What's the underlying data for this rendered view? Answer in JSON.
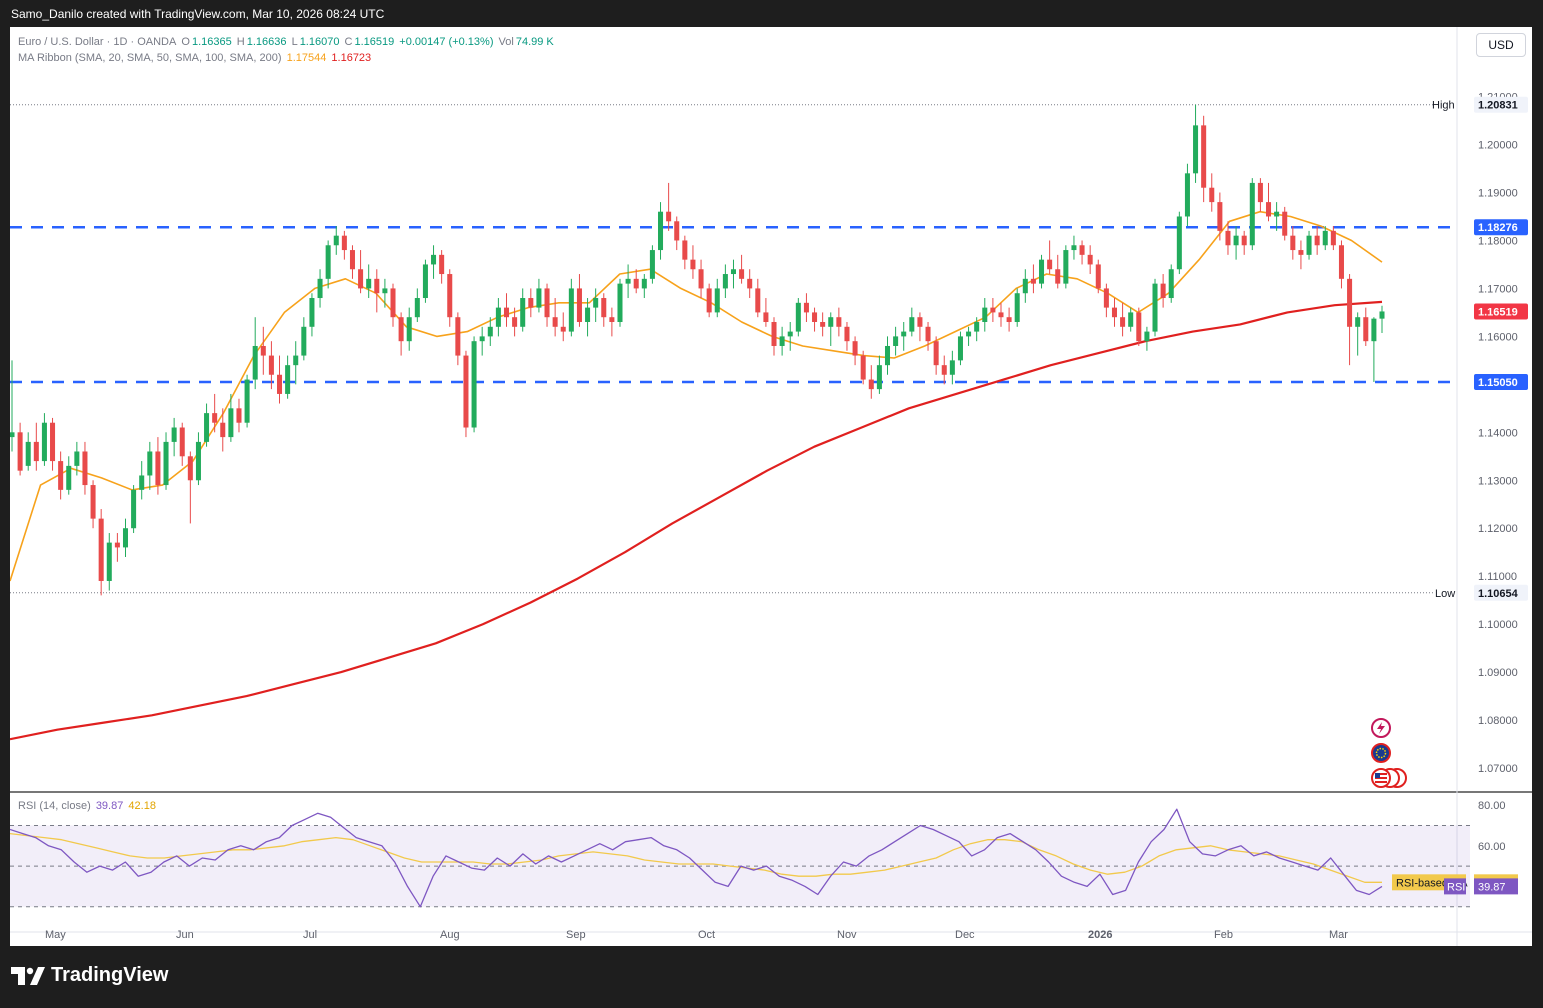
{
  "header": {
    "attribution": "Samo_Danilo created with TradingView.com, Mar 10, 2026 08:24 UTC"
  },
  "legend": {
    "symbol": "Euro / U.S. Dollar · 1D · OANDA",
    "open_label": "O",
    "open": "1.16365",
    "high_label": "H",
    "high": "1.16636",
    "low_label": "L",
    "low": "1.16070",
    "close_label": "C",
    "close": "1.16519",
    "change": "+0.00147 (+0.13%)",
    "vol_label": "Vol",
    "vol": "74.99 K",
    "ma_title": "MA Ribbon (SMA, 20, SMA, 50, SMA, 100, SMA, 200)",
    "ma_value_1": "1.17544",
    "ma_value_2": "1.16723",
    "rsi_title": "RSI (14, close)",
    "rsi_value": "39.87",
    "rsi_ma_value": "42.18"
  },
  "currency_button": "USD",
  "price_axis": {
    "ticks": [
      "1.21000",
      "1.20000",
      "1.19000",
      "1.18000",
      "1.17000",
      "1.16000",
      "1.15000",
      "1.14000",
      "1.13000",
      "1.12000",
      "1.11000",
      "1.10000",
      "1.09000",
      "1.08000",
      "1.07000"
    ],
    "high_label": "High",
    "high_value": "1.20831",
    "low_label": "Low",
    "low_value": "1.10654",
    "resistance_label": "1.18276",
    "current_label": "1.16519",
    "support_label": "1.15050"
  },
  "rsi_axis": {
    "ticks": [
      "80.00",
      "60.00"
    ],
    "ma_label": "RSI-based MA",
    "ma_value": "42.18",
    "rsi_label": "RSI",
    "rsi_value": "39.87"
  },
  "time_axis": [
    "May",
    "Jun",
    "Jul",
    "Aug",
    "Sep",
    "Oct",
    "Nov",
    "Dec",
    "2026",
    "Feb",
    "Mar"
  ],
  "colors": {
    "up": "#22ab5c",
    "down": "#e84a4a",
    "ma_fast": "#f7a21b",
    "ma_slow": "#e0201f",
    "level_line": "#2962ff",
    "rsi": "#7e57c2",
    "rsi_ma": "#f2c94c"
  },
  "icons": [
    "lightning-event-icon",
    "eu-flag-icon",
    "us-flag-icon"
  ],
  "footer": {
    "brand": "TradingView"
  },
  "chart_data": {
    "type": "candlestick",
    "instrument": "EUR/USD",
    "timeframe": "1D",
    "ylim": [
      1.065,
      1.212
    ],
    "levels": {
      "high": 1.20831,
      "low": 1.10654,
      "resistance": 1.18276,
      "support": 1.1505,
      "last": 1.16519
    },
    "ohlc": [
      [
        1.139,
        1.155,
        1.136,
        1.14
      ],
      [
        1.14,
        1.142,
        1.131,
        1.132
      ],
      [
        1.133,
        1.14,
        1.132,
        1.138
      ],
      [
        1.138,
        1.142,
        1.132,
        1.134
      ],
      [
        1.134,
        1.144,
        1.133,
        1.142
      ],
      [
        1.142,
        1.143,
        1.132,
        1.134
      ],
      [
        1.134,
        1.136,
        1.126,
        1.128
      ],
      [
        1.128,
        1.135,
        1.127,
        1.133
      ],
      [
        1.133,
        1.138,
        1.131,
        1.136
      ],
      [
        1.136,
        1.138,
        1.127,
        1.129
      ],
      [
        1.129,
        1.13,
        1.12,
        1.122
      ],
      [
        1.122,
        1.124,
        1.106,
        1.109
      ],
      [
        1.109,
        1.119,
        1.107,
        1.117
      ],
      [
        1.117,
        1.119,
        1.113,
        1.116
      ],
      [
        1.116,
        1.122,
        1.114,
        1.12
      ],
      [
        1.12,
        1.129,
        1.119,
        1.128
      ],
      [
        1.128,
        1.134,
        1.126,
        1.131
      ],
      [
        1.131,
        1.138,
        1.128,
        1.136
      ],
      [
        1.136,
        1.139,
        1.127,
        1.129
      ],
      [
        1.129,
        1.14,
        1.128,
        1.138
      ],
      [
        1.138,
        1.143,
        1.135,
        1.141
      ],
      [
        1.141,
        1.142,
        1.133,
        1.135
      ],
      [
        1.135,
        1.136,
        1.121,
        1.13
      ],
      [
        1.13,
        1.14,
        1.129,
        1.138
      ],
      [
        1.138,
        1.146,
        1.137,
        1.144
      ],
      [
        1.144,
        1.148,
        1.14,
        1.142
      ],
      [
        1.142,
        1.145,
        1.136,
        1.139
      ],
      [
        1.139,
        1.148,
        1.138,
        1.145
      ],
      [
        1.145,
        1.147,
        1.14,
        1.142
      ],
      [
        1.142,
        1.152,
        1.141,
        1.151
      ],
      [
        1.151,
        1.164,
        1.149,
        1.158
      ],
      [
        1.158,
        1.162,
        1.152,
        1.156
      ],
      [
        1.156,
        1.159,
        1.149,
        1.152
      ],
      [
        1.152,
        1.156,
        1.146,
        1.148
      ],
      [
        1.148,
        1.156,
        1.147,
        1.154
      ],
      [
        1.154,
        1.159,
        1.15,
        1.156
      ],
      [
        1.156,
        1.164,
        1.155,
        1.162
      ],
      [
        1.162,
        1.169,
        1.16,
        1.168
      ],
      [
        1.168,
        1.174,
        1.166,
        1.172
      ],
      [
        1.172,
        1.18,
        1.17,
        1.179
      ],
      [
        1.179,
        1.183,
        1.177,
        1.181
      ],
      [
        1.181,
        1.182,
        1.176,
        1.178
      ],
      [
        1.178,
        1.179,
        1.172,
        1.174
      ],
      [
        1.174,
        1.178,
        1.169,
        1.17
      ],
      [
        1.17,
        1.175,
        1.168,
        1.172
      ],
      [
        1.172,
        1.174,
        1.165,
        1.169
      ],
      [
        1.169,
        1.172,
        1.166,
        1.17
      ],
      [
        1.17,
        1.171,
        1.162,
        1.164
      ],
      [
        1.164,
        1.165,
        1.156,
        1.159
      ],
      [
        1.159,
        1.166,
        1.157,
        1.164
      ],
      [
        1.164,
        1.17,
        1.163,
        1.168
      ],
      [
        1.168,
        1.176,
        1.167,
        1.175
      ],
      [
        1.175,
        1.179,
        1.172,
        1.177
      ],
      [
        1.177,
        1.178,
        1.171,
        1.173
      ],
      [
        1.173,
        1.174,
        1.162,
        1.164
      ],
      [
        1.164,
        1.165,
        1.154,
        1.156
      ],
      [
        1.156,
        1.157,
        1.139,
        1.141
      ],
      [
        1.141,
        1.16,
        1.14,
        1.159
      ],
      [
        1.159,
        1.162,
        1.156,
        1.16
      ],
      [
        1.16,
        1.164,
        1.158,
        1.162
      ],
      [
        1.162,
        1.168,
        1.16,
        1.166
      ],
      [
        1.166,
        1.169,
        1.162,
        1.164
      ],
      [
        1.164,
        1.166,
        1.16,
        1.162
      ],
      [
        1.162,
        1.17,
        1.161,
        1.168
      ],
      [
        1.168,
        1.17,
        1.164,
        1.166
      ],
      [
        1.166,
        1.172,
        1.165,
        1.17
      ],
      [
        1.17,
        1.171,
        1.162,
        1.164
      ],
      [
        1.164,
        1.168,
        1.16,
        1.162
      ],
      [
        1.162,
        1.165,
        1.159,
        1.161
      ],
      [
        1.161,
        1.172,
        1.16,
        1.17
      ],
      [
        1.17,
        1.173,
        1.162,
        1.163
      ],
      [
        1.163,
        1.168,
        1.16,
        1.166
      ],
      [
        1.166,
        1.17,
        1.163,
        1.168
      ],
      [
        1.168,
        1.169,
        1.162,
        1.164
      ],
      [
        1.164,
        1.166,
        1.16,
        1.163
      ],
      [
        1.163,
        1.172,
        1.162,
        1.171
      ],
      [
        1.171,
        1.175,
        1.168,
        1.172
      ],
      [
        1.172,
        1.174,
        1.169,
        1.17
      ],
      [
        1.17,
        1.173,
        1.168,
        1.172
      ],
      [
        1.172,
        1.179,
        1.171,
        1.178
      ],
      [
        1.178,
        1.188,
        1.176,
        1.186
      ],
      [
        1.186,
        1.192,
        1.182,
        1.184
      ],
      [
        1.184,
        1.185,
        1.178,
        1.18
      ],
      [
        1.18,
        1.181,
        1.174,
        1.176
      ],
      [
        1.176,
        1.179,
        1.172,
        1.174
      ],
      [
        1.174,
        1.176,
        1.168,
        1.17
      ],
      [
        1.17,
        1.171,
        1.164,
        1.165
      ],
      [
        1.165,
        1.172,
        1.164,
        1.17
      ],
      [
        1.17,
        1.175,
        1.168,
        1.173
      ],
      [
        1.173,
        1.176,
        1.17,
        1.174
      ],
      [
        1.174,
        1.177,
        1.171,
        1.172
      ],
      [
        1.172,
        1.174,
        1.168,
        1.17
      ],
      [
        1.17,
        1.172,
        1.164,
        1.165
      ],
      [
        1.165,
        1.168,
        1.162,
        1.163
      ],
      [
        1.163,
        1.164,
        1.156,
        1.158
      ],
      [
        1.158,
        1.162,
        1.156,
        1.16
      ],
      [
        1.16,
        1.163,
        1.157,
        1.161
      ],
      [
        1.161,
        1.168,
        1.16,
        1.167
      ],
      [
        1.167,
        1.169,
        1.163,
        1.165
      ],
      [
        1.165,
        1.166,
        1.161,
        1.163
      ],
      [
        1.163,
        1.165,
        1.16,
        1.162
      ],
      [
        1.162,
        1.165,
        1.158,
        1.164
      ],
      [
        1.164,
        1.166,
        1.16,
        1.162
      ],
      [
        1.162,
        1.163,
        1.157,
        1.159
      ],
      [
        1.159,
        1.16,
        1.154,
        1.156
      ],
      [
        1.156,
        1.157,
        1.15,
        1.151
      ],
      [
        1.151,
        1.154,
        1.147,
        1.149
      ],
      [
        1.149,
        1.156,
        1.148,
        1.154
      ],
      [
        1.154,
        1.16,
        1.152,
        1.158
      ],
      [
        1.158,
        1.162,
        1.156,
        1.16
      ],
      [
        1.16,
        1.163,
        1.157,
        1.161
      ],
      [
        1.161,
        1.166,
        1.16,
        1.164
      ],
      [
        1.164,
        1.165,
        1.159,
        1.162
      ],
      [
        1.162,
        1.163,
        1.157,
        1.159
      ],
      [
        1.159,
        1.16,
        1.152,
        1.154
      ],
      [
        1.154,
        1.156,
        1.15,
        1.152
      ],
      [
        1.152,
        1.157,
        1.15,
        1.155
      ],
      [
        1.155,
        1.161,
        1.154,
        1.16
      ],
      [
        1.16,
        1.162,
        1.158,
        1.161
      ],
      [
        1.161,
        1.164,
        1.159,
        1.163
      ],
      [
        1.163,
        1.168,
        1.161,
        1.166
      ],
      [
        1.166,
        1.168,
        1.163,
        1.165
      ],
      [
        1.165,
        1.167,
        1.162,
        1.164
      ],
      [
        1.164,
        1.166,
        1.161,
        1.163
      ],
      [
        1.163,
        1.17,
        1.162,
        1.169
      ],
      [
        1.169,
        1.174,
        1.167,
        1.172
      ],
      [
        1.172,
        1.175,
        1.169,
        1.171
      ],
      [
        1.171,
        1.177,
        1.17,
        1.176
      ],
      [
        1.176,
        1.18,
        1.173,
        1.174
      ],
      [
        1.174,
        1.177,
        1.17,
        1.171
      ],
      [
        1.171,
        1.179,
        1.17,
        1.178
      ],
      [
        1.178,
        1.181,
        1.176,
        1.179
      ],
      [
        1.179,
        1.18,
        1.175,
        1.177
      ],
      [
        1.177,
        1.179,
        1.173,
        1.175
      ],
      [
        1.175,
        1.176,
        1.169,
        1.17
      ],
      [
        1.17,
        1.171,
        1.164,
        1.166
      ],
      [
        1.166,
        1.168,
        1.162,
        1.164
      ],
      [
        1.164,
        1.167,
        1.16,
        1.162
      ],
      [
        1.162,
        1.166,
        1.161,
        1.165
      ],
      [
        1.165,
        1.166,
        1.158,
        1.159
      ],
      [
        1.159,
        1.162,
        1.157,
        1.161
      ],
      [
        1.161,
        1.172,
        1.16,
        1.171
      ],
      [
        1.171,
        1.173,
        1.166,
        1.168
      ],
      [
        1.168,
        1.175,
        1.167,
        1.174
      ],
      [
        1.174,
        1.186,
        1.173,
        1.185
      ],
      [
        1.185,
        1.196,
        1.183,
        1.194
      ],
      [
        1.194,
        1.2083,
        1.192,
        1.204
      ],
      [
        1.204,
        1.206,
        1.188,
        1.191
      ],
      [
        1.191,
        1.194,
        1.186,
        1.188
      ],
      [
        1.188,
        1.19,
        1.18,
        1.182
      ],
      [
        1.182,
        1.184,
        1.177,
        1.179
      ],
      [
        1.179,
        1.183,
        1.176,
        1.181
      ],
      [
        1.181,
        1.182,
        1.177,
        1.179
      ],
      [
        1.179,
        1.193,
        1.178,
        1.192
      ],
      [
        1.192,
        1.193,
        1.186,
        1.188
      ],
      [
        1.188,
        1.192,
        1.184,
        1.185
      ],
      [
        1.185,
        1.188,
        1.182,
        1.186
      ],
      [
        1.186,
        1.187,
        1.18,
        1.181
      ],
      [
        1.181,
        1.183,
        1.176,
        1.178
      ],
      [
        1.178,
        1.18,
        1.174,
        1.177
      ],
      [
        1.177,
        1.182,
        1.176,
        1.181
      ],
      [
        1.181,
        1.183,
        1.177,
        1.179
      ],
      [
        1.179,
        1.183,
        1.178,
        1.182
      ],
      [
        1.182,
        1.183,
        1.178,
        1.179
      ],
      [
        1.179,
        1.18,
        1.17,
        1.172
      ],
      [
        1.172,
        1.173,
        1.154,
        1.162
      ],
      [
        1.162,
        1.165,
        1.156,
        1.164
      ],
      [
        1.164,
        1.166,
        1.158,
        1.159
      ],
      [
        1.159,
        1.164,
        1.1505,
        1.1637
      ],
      [
        1.1637,
        1.1664,
        1.1607,
        1.1652
      ]
    ],
    "ma_fast_sma20": [
      1.109,
      1.129,
      1.1325,
      1.1305,
      1.128,
      1.129,
      1.134,
      1.144,
      1.156,
      1.165,
      1.17,
      1.172,
      1.169,
      1.162,
      1.16,
      1.161,
      1.164,
      1.166,
      1.167,
      1.167,
      1.173,
      1.174,
      1.17,
      1.167,
      1.163,
      1.16,
      1.158,
      1.157,
      1.156,
      1.1555,
      1.158,
      1.161,
      1.164,
      1.17,
      1.173,
      1.172,
      1.169,
      1.165,
      1.169,
      1.176,
      1.184,
      1.186,
      1.185,
      1.183,
      1.18,
      1.1755
    ],
    "ma_slow_sma200": [
      1.076,
      1.078,
      1.0795,
      1.081,
      1.083,
      1.085,
      1.0875,
      1.09,
      1.093,
      1.096,
      1.1,
      1.1045,
      1.1095,
      1.115,
      1.121,
      1.1265,
      1.132,
      1.137,
      1.141,
      1.145,
      1.148,
      1.151,
      1.154,
      1.1565,
      1.159,
      1.161,
      1.1625,
      1.165,
      1.1665,
      1.1672
    ],
    "rsi": {
      "ylim": [
        20,
        85
      ],
      "upper_band": 70,
      "middle": 50,
      "lower_band": 30,
      "rsi14": [
        68,
        66,
        64,
        60,
        58,
        52,
        47,
        50,
        48,
        52,
        45,
        47,
        52,
        55,
        50,
        54,
        53,
        58,
        60,
        58,
        62,
        64,
        70,
        73,
        76,
        74,
        69,
        64,
        62,
        60,
        52,
        40,
        30,
        45,
        55,
        52,
        49,
        48,
        54,
        50,
        56,
        51,
        55,
        52,
        55,
        58,
        61,
        58,
        62,
        63,
        64,
        60,
        58,
        54,
        48,
        42,
        40,
        50,
        48,
        50,
        45,
        43,
        40,
        36,
        45,
        52,
        50,
        55,
        58,
        62,
        66,
        70,
        68,
        65,
        62,
        55,
        58,
        64,
        66,
        62,
        58,
        52,
        45,
        42,
        40,
        46,
        36,
        38,
        52,
        62,
        68,
        78,
        62,
        56,
        55,
        58,
        60,
        55,
        57,
        54,
        52,
        50,
        48,
        54,
        46,
        38,
        36,
        40
      ],
      "rsi_ma": [
        66,
        65,
        64,
        63,
        61,
        59,
        57,
        55,
        54,
        54,
        55,
        56,
        57,
        58,
        58,
        59,
        60,
        62,
        63,
        64,
        63,
        60,
        57,
        54,
        52,
        52,
        52,
        52,
        51,
        51,
        52,
        53,
        55,
        56,
        57,
        56,
        55,
        53,
        52,
        51,
        51,
        51,
        50,
        49,
        48,
        46,
        45,
        45,
        46,
        46,
        47,
        48,
        50,
        52,
        54,
        58,
        61,
        63,
        63,
        62,
        58,
        55,
        51,
        48,
        46,
        47,
        50,
        55,
        58,
        59,
        60,
        58,
        57,
        56,
        55,
        53,
        51,
        48,
        45,
        42,
        42
      ]
    }
  }
}
